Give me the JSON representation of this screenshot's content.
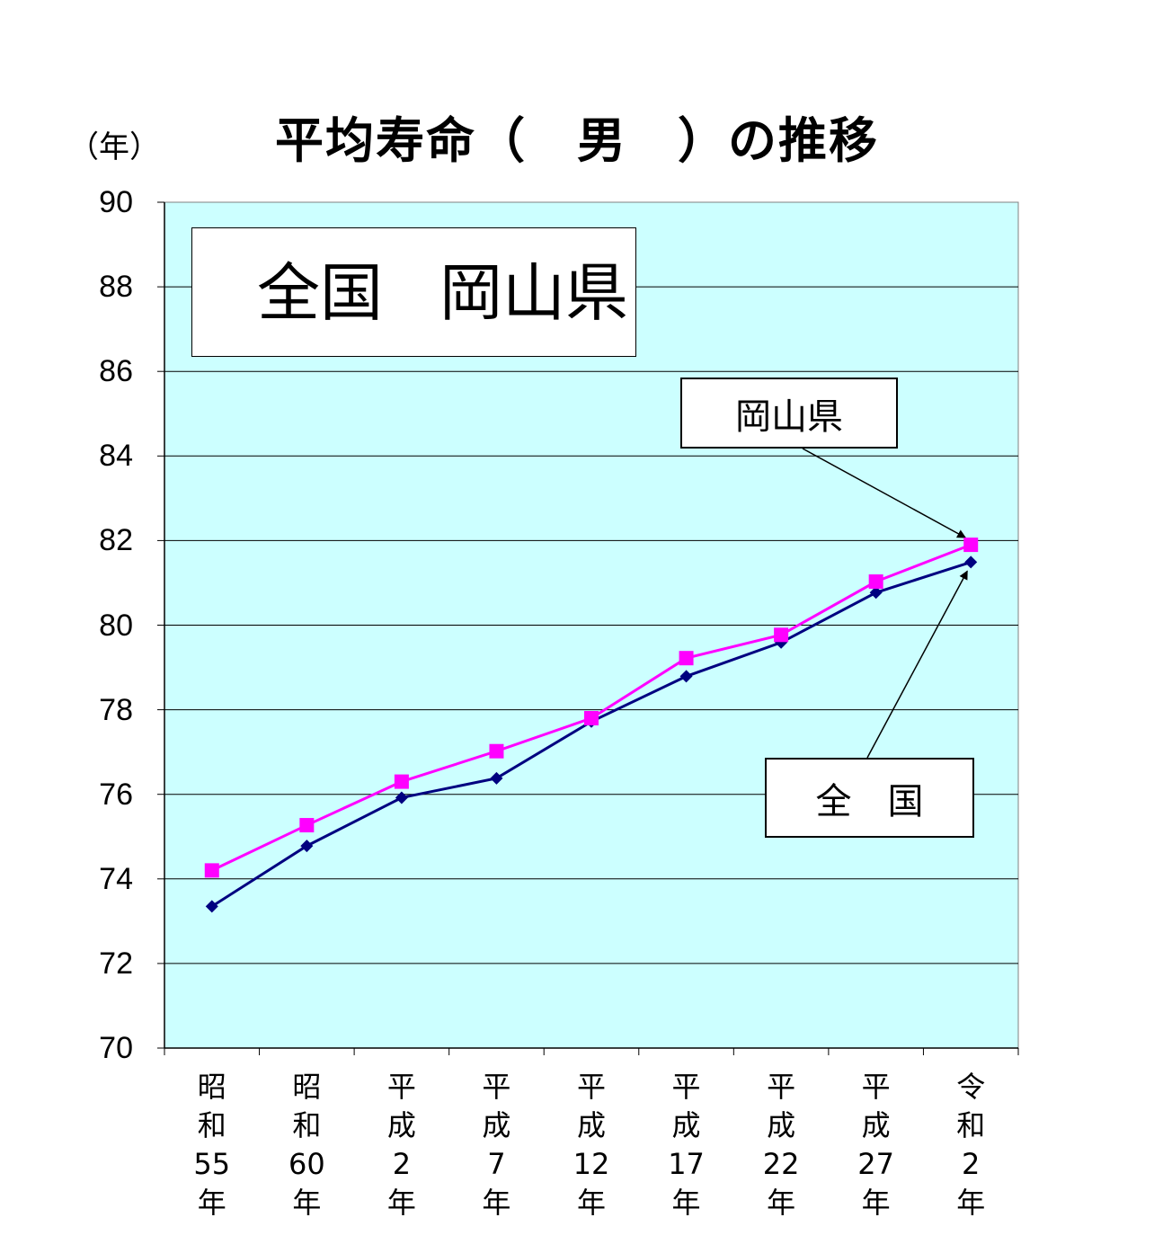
{
  "chart_data": {
    "type": "line",
    "title": "平均寿命（　男　）の推移",
    "ylabel": "（年）",
    "ylim": [
      70,
      90
    ],
    "ytick_step": 2,
    "yticks": [
      "70",
      "72",
      "74",
      "76",
      "78",
      "80",
      "82",
      "84",
      "86",
      "88",
      "90"
    ],
    "grid": true,
    "legend_position": "top-left",
    "categories": [
      [
        "昭",
        "和",
        "55",
        "年"
      ],
      [
        "昭",
        "和",
        "60",
        "年"
      ],
      [
        "平",
        "成",
        "2",
        "年"
      ],
      [
        "平",
        "成",
        "7",
        "年"
      ],
      [
        "平",
        "成",
        "12",
        "年"
      ],
      [
        "平",
        "成",
        "17",
        "年"
      ],
      [
        "平",
        "成",
        "22",
        "年"
      ],
      [
        "平",
        "成",
        "27",
        "年"
      ],
      [
        "令",
        "和",
        "2",
        "年"
      ]
    ],
    "series": [
      {
        "name": "全国",
        "color": "#000080",
        "marker": "diamond",
        "values": [
          73.35,
          74.78,
          75.92,
          76.38,
          77.72,
          78.79,
          79.59,
          80.77,
          81.49
        ]
      },
      {
        "name": "岡山県",
        "color": "#ff00ff",
        "marker": "square",
        "values": [
          74.2,
          75.27,
          76.3,
          77.02,
          77.8,
          79.22,
          79.77,
          81.03,
          81.9
        ]
      }
    ],
    "annotations": [
      {
        "text": "岡山県",
        "series": "岡山県",
        "point": 8
      },
      {
        "text": "全　国",
        "series": "全国",
        "point": 8
      }
    ],
    "plot_background": "#ccffff"
  }
}
